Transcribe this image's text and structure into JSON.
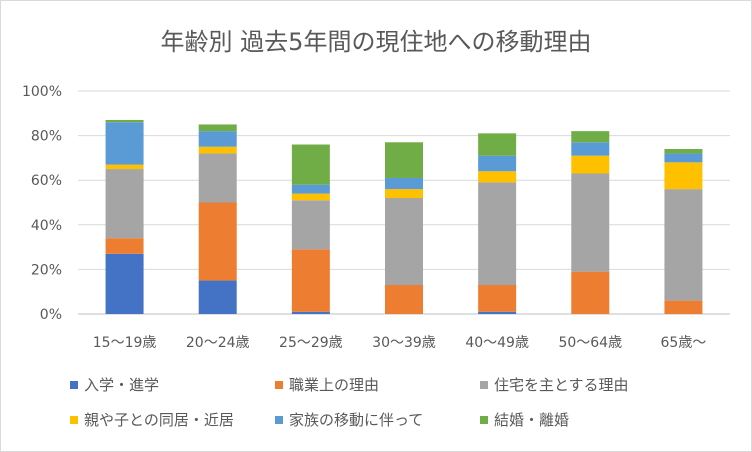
{
  "chart_data": {
    "type": "bar",
    "stacked": true,
    "title": "年齢別 過去5年間の現住地への移動理由",
    "categories": [
      "15～19歳",
      "20～24歳",
      "25～29歳",
      "30～39歳",
      "40～49歳",
      "50～64歳",
      "65歳～"
    ],
    "y_ticks": [
      "0%",
      "20%",
      "40%",
      "60%",
      "80%",
      "100%"
    ],
    "ylim": [
      0,
      100
    ],
    "grid": true,
    "legend_position": "bottom",
    "series": [
      {
        "name": "入学・進学",
        "color": "#4472C4",
        "values": [
          27,
          15,
          1,
          0,
          1,
          0,
          0
        ]
      },
      {
        "name": "職業上の理由",
        "color": "#ED7D31",
        "values": [
          7,
          35,
          28,
          13,
          12,
          19,
          6
        ]
      },
      {
        "name": "住宅を主とする理由",
        "color": "#A5A5A5",
        "values": [
          31,
          22,
          22,
          39,
          46,
          44,
          50
        ]
      },
      {
        "name": "親や子との同居・近居",
        "color": "#FFC000",
        "values": [
          2,
          3,
          3,
          4,
          5,
          8,
          12
        ]
      },
      {
        "name": "家族の移動に伴って",
        "color": "#5B9BD5",
        "values": [
          19,
          7,
          4,
          5,
          7,
          6,
          4
        ]
      },
      {
        "name": "結婚・離婚",
        "color": "#70AD47",
        "values": [
          1,
          3,
          18,
          16,
          10,
          5,
          2
        ]
      }
    ]
  }
}
